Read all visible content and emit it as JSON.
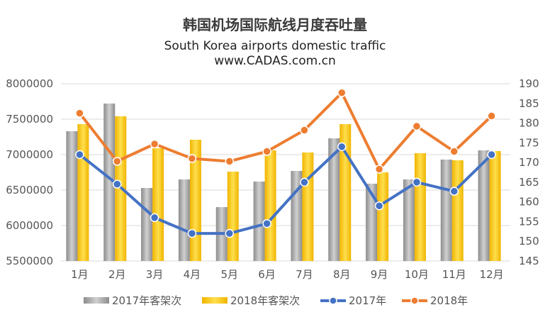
{
  "chart_data": {
    "type": "bar",
    "title": "韩国机场国际航线月度吞吐量",
    "subtitle": "South Korea airports domestic traffic",
    "source": "www.CADAS.com.cn",
    "categories": [
      "1月",
      "2月",
      "3月",
      "4月",
      "5月",
      "6月",
      "7月",
      "8月",
      "9月",
      "10月",
      "11月",
      "12月"
    ],
    "y_left": {
      "range": [
        5500000,
        8000000
      ],
      "ticks": [
        "8000000",
        "7500000",
        "7000000",
        "6500000",
        "6000000",
        "5500000"
      ],
      "tick_values": [
        8000000,
        7500000,
        7000000,
        6500000,
        6000000,
        5500000
      ]
    },
    "y_right": {
      "range": [
        145,
        190
      ],
      "ticks": [
        "190",
        "185",
        "180",
        "175",
        "170",
        "165",
        "160",
        "155",
        "150",
        "145"
      ],
      "tick_values": [
        190,
        185,
        180,
        175,
        170,
        165,
        160,
        155,
        150,
        145
      ]
    },
    "grid": true,
    "legend_position": "bottom",
    "series": [
      {
        "name": "2017年客架次",
        "type": "bar",
        "axis": "left",
        "color": "#a6a6a6",
        "values": [
          7330000,
          7720000,
          6530000,
          6650000,
          6260000,
          6620000,
          6770000,
          7230000,
          6590000,
          6650000,
          6930000,
          7060000
        ]
      },
      {
        "name": "2018年客架次",
        "type": "bar",
        "axis": "left",
        "color": "#ffc000",
        "values": [
          7430000,
          7540000,
          7090000,
          7210000,
          6760000,
          7060000,
          7030000,
          7430000,
          6750000,
          7020000,
          6920000,
          7050000
        ]
      },
      {
        "name": "2017年",
        "type": "line",
        "axis": "right",
        "color": "#4472c4",
        "values": [
          172,
          164.5,
          156,
          152,
          152,
          154.5,
          165,
          174,
          159,
          165,
          162.7,
          172
        ]
      },
      {
        "name": "2018年",
        "type": "line",
        "axis": "right",
        "color": "#ed7d31",
        "values": [
          182.5,
          170.3,
          174.7,
          171,
          170.3,
          172.8,
          178.2,
          187.7,
          168.3,
          179.2,
          172.8,
          181.8
        ]
      }
    ]
  }
}
